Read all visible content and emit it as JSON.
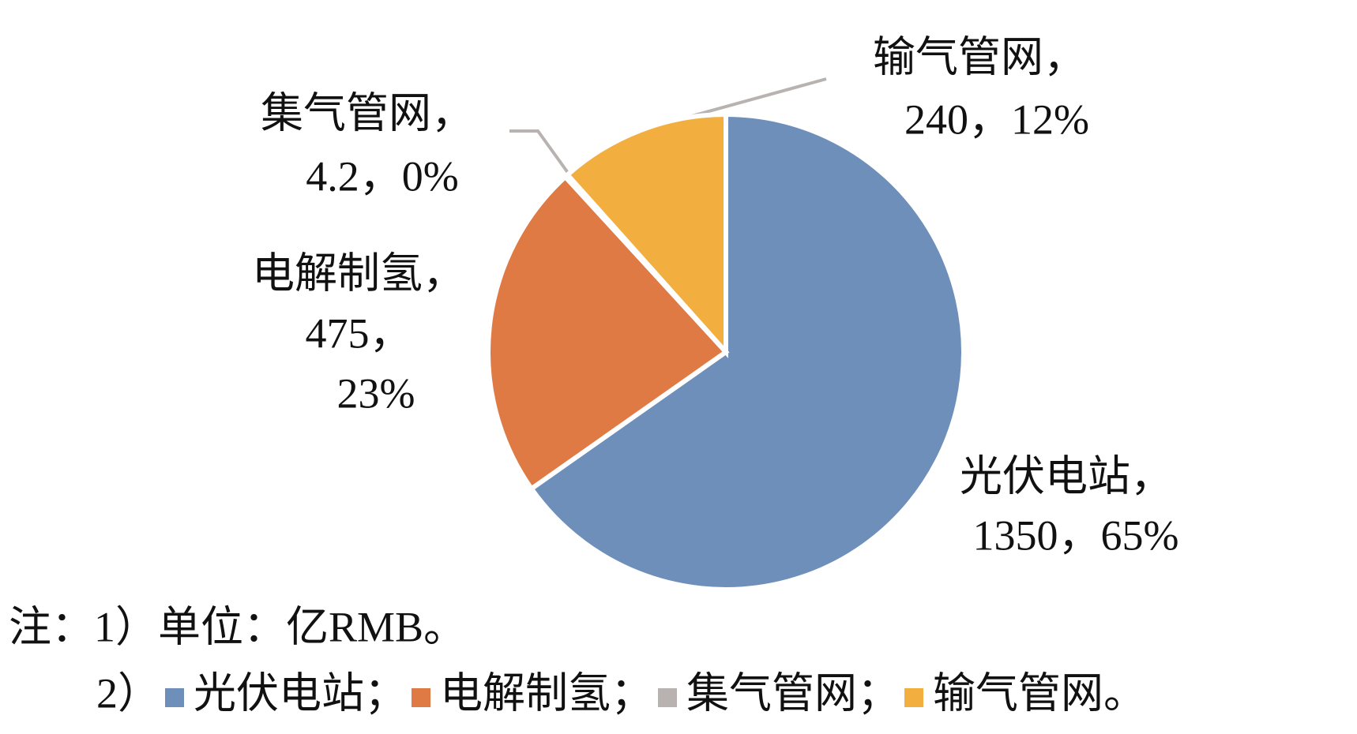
{
  "chart_data": {
    "type": "pie",
    "categories": [
      "光伏电站",
      "电解制氢",
      "集气管网",
      "输气管网"
    ],
    "values": [
      1350,
      475,
      4.2,
      240
    ],
    "colors": [
      "#6d8fba",
      "#e07a44",
      "#b8b3b0",
      "#f2af40"
    ],
    "data_labels": [
      [
        "光伏电站，",
        "1350，65%"
      ],
      [
        "电解制氢，",
        "475，",
        "23%"
      ],
      [
        "集气管网，",
        "4.2，0%"
      ],
      [
        "输气管网，",
        "240，12%"
      ]
    ],
    "note_1": "注：1）单位：亿RMB。",
    "note_2_prefix": "2）",
    "legend_punctuation": [
      "；",
      "；",
      "；",
      "。"
    ]
  }
}
